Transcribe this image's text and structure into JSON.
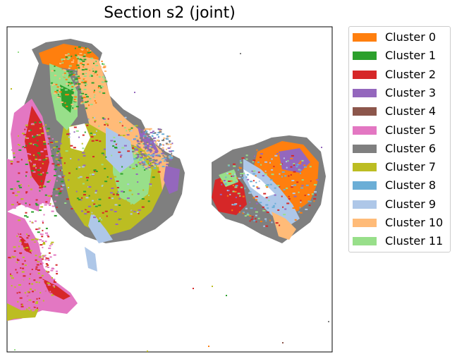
{
  "chart_data": {
    "type": "scatter",
    "title": "Section s2 (joint)",
    "xlabel": "",
    "ylabel": "",
    "axes_ticks": false,
    "grid": false,
    "legend_placement": "outside-right-top",
    "series": [
      {
        "name": "Cluster 0",
        "color": "#ff7f0e"
      },
      {
        "name": "Cluster 1",
        "color": "#2ca02c"
      },
      {
        "name": "Cluster 2",
        "color": "#d62728"
      },
      {
        "name": "Cluster 3",
        "color": "#9467bd"
      },
      {
        "name": "Cluster 4",
        "color": "#8c564b"
      },
      {
        "name": "Cluster 5",
        "color": "#e377c2"
      },
      {
        "name": "Cluster 6",
        "color": "#7f7f7f"
      },
      {
        "name": "Cluster 7",
        "color": "#bcbd22"
      },
      {
        "name": "Cluster 8",
        "color": "#6baed6"
      },
      {
        "name": "Cluster 9",
        "color": "#aec7e8"
      },
      {
        "name": "Cluster 10",
        "color": "#ffbb78"
      },
      {
        "name": "Cluster 11",
        "color": "#98df8a"
      }
    ]
  }
}
